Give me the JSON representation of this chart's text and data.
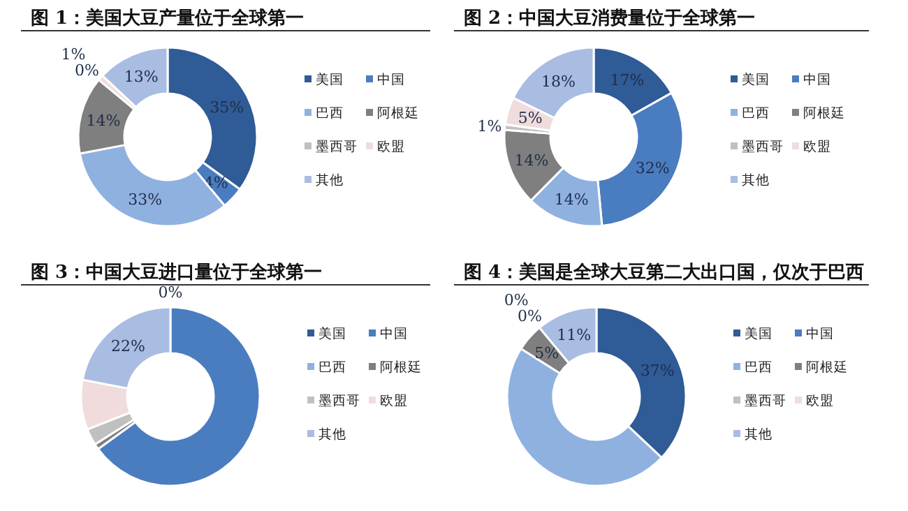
{
  "chart_data": [
    {
      "type": "donut",
      "title": "图 1：美国大豆产量位于全球第一",
      "legend": "right",
      "categories": [
        "美国",
        "中国",
        "巴西",
        "阿根廷",
        "墨西哥",
        "欧盟",
        "其他"
      ],
      "values": [
        35,
        4,
        33,
        14,
        0,
        1,
        13
      ],
      "colors": [
        "#2f5b96",
        "#4a7cc0",
        "#8fb1e0",
        "#7f7f7f",
        "#c0c0c0",
        "#f0dcdc",
        "#a9bce2"
      ],
      "value_labels": [
        "35%",
        "4%",
        "33%",
        "14%",
        "0%",
        "1%",
        "13%"
      ]
    },
    {
      "type": "donut",
      "title": "图 2：中国大豆消费量位于全球第一",
      "legend": "right",
      "categories": [
        "美国",
        "中国",
        "巴西",
        "阿根廷",
        "墨西哥",
        "欧盟",
        "其他"
      ],
      "values": [
        17,
        32,
        14,
        14,
        1,
        5,
        18
      ],
      "colors": [
        "#2f5b96",
        "#4a7cc0",
        "#8fb1e0",
        "#7f7f7f",
        "#c0c0c0",
        "#f0dcdc",
        "#a9bce2"
      ],
      "value_labels": [
        "17%",
        "32%",
        "14%",
        "14%",
        "1%",
        "5%",
        "18%"
      ]
    },
    {
      "type": "donut",
      "title": "图 3：中国大豆进口量位于全球第一",
      "legend": "right",
      "categories": [
        "美国",
        "中国",
        "巴西",
        "阿根廷",
        "墨西哥",
        "欧盟",
        "其他"
      ],
      "values": [
        0,
        65,
        0,
        1,
        3,
        9,
        22
      ],
      "colors": [
        "#2f5b96",
        "#4a7cc0",
        "#8fb1e0",
        "#7f7f7f",
        "#c0c0c0",
        "#f0dcdc",
        "#a9bce2"
      ],
      "value_labels": [
        "0%",
        null,
        null,
        null,
        null,
        null,
        "22%"
      ]
    },
    {
      "type": "donut",
      "title": "图 4：美国是全球大豆第二大出口国，仅次于巴西",
      "legend": "right",
      "categories": [
        "美国",
        "中国",
        "巴西",
        "阿根廷",
        "墨西哥",
        "欧盟",
        "其他"
      ],
      "values": [
        37,
        0,
        47,
        5,
        0,
        0,
        11
      ],
      "colors": [
        "#2f5b96",
        "#4a7cc0",
        "#8fb1e0",
        "#7f7f7f",
        "#c0c0c0",
        "#f0dcdc",
        "#a9bce2"
      ],
      "value_labels": [
        "37%",
        null,
        null,
        "5%",
        "0%",
        "0%",
        "11%"
      ]
    }
  ]
}
